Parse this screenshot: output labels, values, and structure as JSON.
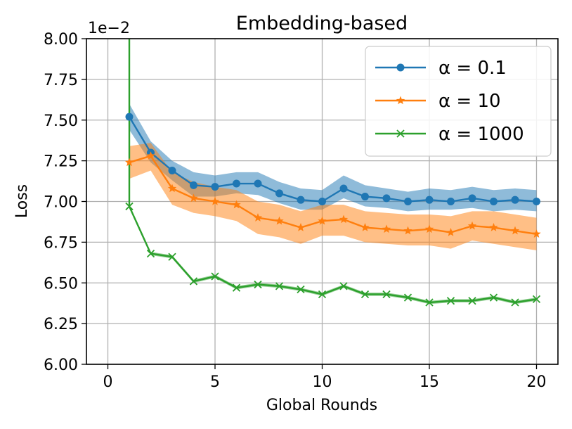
{
  "chart_data": {
    "type": "line",
    "title": "Embedding-based",
    "xlabel": "Global Rounds",
    "ylabel": "Loss",
    "offset_text": "1e−2",
    "xlim": [
      -1.0,
      21.0
    ],
    "ylim": [
      6.0,
      8.0
    ],
    "xticks": [
      0,
      5,
      10,
      15,
      20
    ],
    "xtick_labels": [
      "0",
      "5",
      "10",
      "15",
      "20"
    ],
    "yticks": [
      6.0,
      6.25,
      6.5,
      6.75,
      7.0,
      7.25,
      7.5,
      7.75,
      8.0
    ],
    "ytick_labels": [
      "6.00",
      "6.25",
      "6.50",
      "6.75",
      "7.00",
      "7.25",
      "7.50",
      "7.75",
      "8.00"
    ],
    "grid": true,
    "legend_position": "top-right",
    "x": [
      1,
      2,
      3,
      4,
      5,
      6,
      7,
      8,
      9,
      10,
      11,
      12,
      13,
      14,
      15,
      16,
      17,
      18,
      19,
      20
    ],
    "series": [
      {
        "name": "α = 0.1",
        "color": "#1f77b4",
        "marker": "circle",
        "values": [
          7.52,
          7.3,
          7.19,
          7.1,
          7.09,
          7.11,
          7.11,
          7.05,
          7.01,
          7.0,
          7.08,
          7.03,
          7.02,
          7.0,
          7.01,
          7.0,
          7.02,
          7.0,
          7.01,
          7.0
        ],
        "lower": [
          7.44,
          7.24,
          7.13,
          7.03,
          7.03,
          7.05,
          7.04,
          6.99,
          6.95,
          6.95,
          7.02,
          6.97,
          6.96,
          6.94,
          6.95,
          6.95,
          6.96,
          6.94,
          6.95,
          6.94
        ],
        "upper": [
          7.6,
          7.37,
          7.25,
          7.18,
          7.16,
          7.18,
          7.18,
          7.12,
          7.08,
          7.07,
          7.16,
          7.1,
          7.08,
          7.06,
          7.08,
          7.07,
          7.09,
          7.07,
          7.08,
          7.07
        ]
      },
      {
        "name": "α = 10",
        "color": "#ff7f0e",
        "marker": "star",
        "values": [
          7.24,
          7.28,
          7.08,
          7.02,
          7.0,
          6.98,
          6.9,
          6.88,
          6.84,
          6.88,
          6.89,
          6.84,
          6.83,
          6.82,
          6.83,
          6.81,
          6.85,
          6.84,
          6.82,
          6.8
        ],
        "lower": [
          7.14,
          7.19,
          6.98,
          6.93,
          6.91,
          6.88,
          6.8,
          6.78,
          6.74,
          6.79,
          6.79,
          6.75,
          6.74,
          6.73,
          6.73,
          6.71,
          6.76,
          6.74,
          6.72,
          6.7
        ],
        "upper": [
          7.34,
          7.36,
          7.18,
          7.12,
          7.09,
          7.07,
          7.0,
          6.98,
          6.94,
          6.98,
          6.98,
          6.94,
          6.93,
          6.92,
          6.92,
          6.91,
          6.94,
          6.94,
          6.92,
          6.9
        ]
      },
      {
        "name": "α = 1000",
        "color": "#2ca02c",
        "marker": "x",
        "values": [
          6.97,
          6.68,
          6.66,
          6.51,
          6.54,
          6.47,
          6.49,
          6.48,
          6.46,
          6.43,
          6.48,
          6.43,
          6.43,
          6.41,
          6.38,
          6.39,
          6.39,
          6.41,
          6.38,
          6.4
        ],
        "lower": [
          6.96,
          6.67,
          6.65,
          6.5,
          6.53,
          6.46,
          6.48,
          6.47,
          6.45,
          6.42,
          6.47,
          6.42,
          6.42,
          6.4,
          6.37,
          6.38,
          6.38,
          6.4,
          6.37,
          6.39
        ],
        "upper": [
          6.98,
          6.69,
          6.67,
          6.52,
          6.55,
          6.48,
          6.5,
          6.49,
          6.47,
          6.44,
          6.49,
          6.44,
          6.44,
          6.42,
          6.39,
          6.4,
          6.4,
          6.42,
          6.39,
          6.41
        ],
        "spike_from": 8.0
      }
    ]
  }
}
